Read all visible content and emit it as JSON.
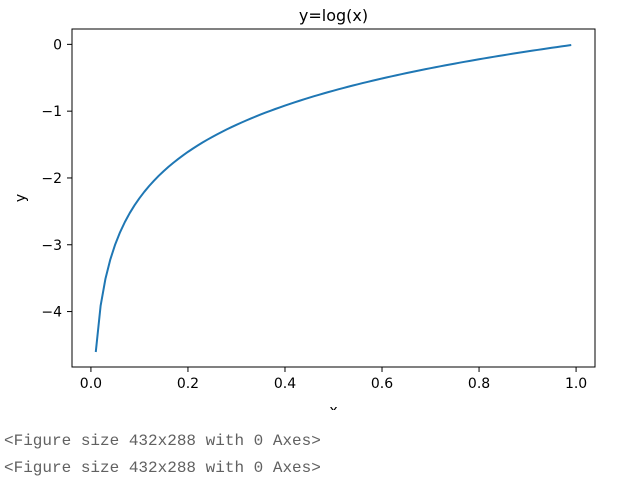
{
  "chart_data": {
    "type": "line",
    "title": "y=log(x)",
    "xlabel": "x",
    "ylabel": "y",
    "xlim": [
      -0.039,
      1.039
    ],
    "ylim": [
      -4.83,
      0.23
    ],
    "xticks": [
      0.0,
      0.2,
      0.4,
      0.6,
      0.8,
      1.0
    ],
    "xtick_labels": [
      "0.0",
      "0.2",
      "0.4",
      "0.6",
      "0.8",
      "1.0"
    ],
    "yticks": [
      0,
      -1,
      -2,
      -3,
      -4
    ],
    "ytick_labels": [
      "0",
      "−1",
      "−2",
      "−3",
      "−4"
    ],
    "grid": false,
    "series": [
      {
        "color": "#1f77b4",
        "function": "log(x)",
        "x_start": 0.01,
        "x_end": 0.99,
        "x_step": 0.01
      }
    ]
  },
  "output": {
    "lines": [
      "<Figure size 432x288 with 0 Axes>",
      "<Figure size 432x288 with 0 Axes>"
    ]
  }
}
